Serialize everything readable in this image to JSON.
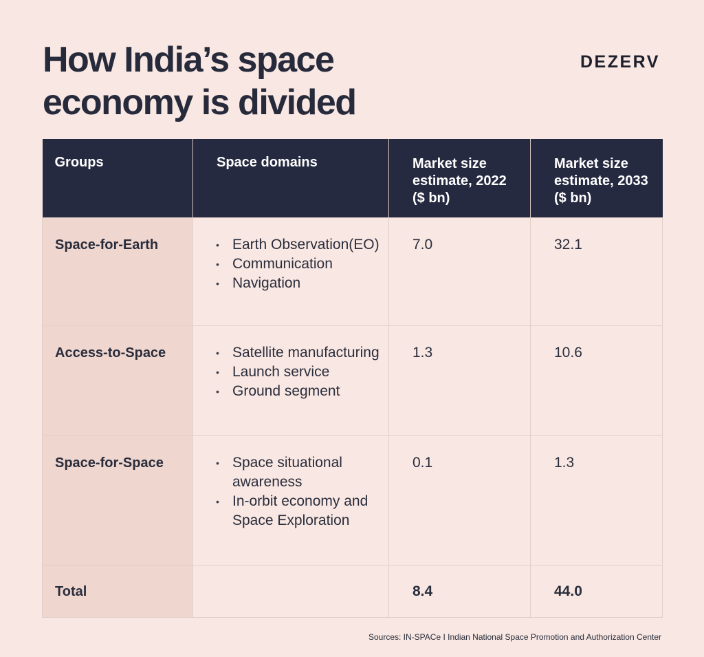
{
  "title": "How India’s space economy is divided",
  "brand": "DEZERV",
  "table": {
    "headers": [
      "Groups",
      "Space domains",
      "Market size estimate, 2022 ($ bn)",
      "Market size estimate, 2033 ($ bn)"
    ],
    "rows": [
      {
        "group": "Space-for-Earth",
        "domains": [
          "Earth Observation(EO)",
          "Communication",
          "Navigation"
        ],
        "v2022": "7.0",
        "v2033": "32.1"
      },
      {
        "group": "Access-to-Space",
        "domains": [
          "Satellite manufacturing",
          "Launch service",
          "Ground segment"
        ],
        "v2022": "1.3",
        "v2033": "10.6"
      },
      {
        "group": "Space-for-Space",
        "domains": [
          "Space situational awareness",
          "In-orbit economy and Space Exploration"
        ],
        "v2022": "0.1",
        "v2033": "1.3"
      }
    ],
    "total": {
      "group": "Total",
      "v2022": "8.4",
      "v2033": "44.0"
    }
  },
  "sources": "Sources: IN-SPACe I Indian National Space Promotion and Authorization Center"
}
